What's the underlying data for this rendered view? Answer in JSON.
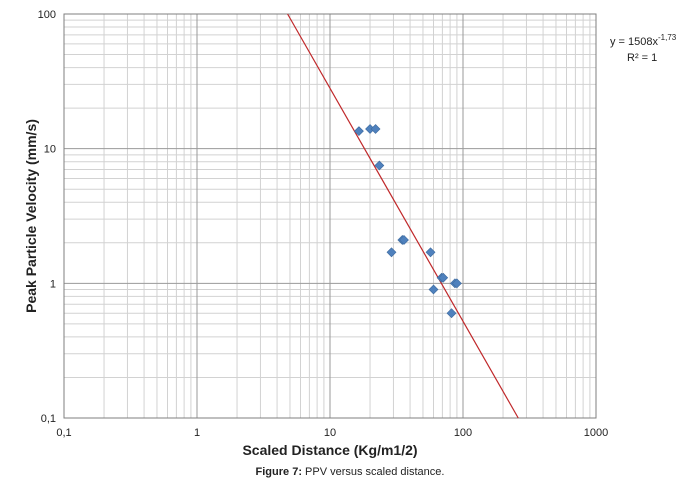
{
  "chart_data": {
    "type": "scatter",
    "xscale": "log",
    "yscale": "log",
    "xlim": [
      0.1,
      1000
    ],
    "ylim": [
      0.1,
      100
    ],
    "xlabel": "Scaled Distance (Kg/m1/2)",
    "ylabel": "Peak Particle Velocity (mm/s)",
    "x_tick_labels": [
      "0,1",
      "1",
      "10",
      "100",
      "1000"
    ],
    "y_tick_labels": [
      "0,1",
      "1",
      "10",
      "100"
    ],
    "grid": true,
    "series": [
      {
        "x": [
          16.5,
          20,
          22,
          23.5,
          29,
          35,
          36,
          57,
          60,
          69,
          71,
          82,
          87,
          90
        ],
        "y": [
          13.5,
          14,
          14,
          7.5,
          1.7,
          2.1,
          2.1,
          1.7,
          0.9,
          1.1,
          1.1,
          0.6,
          1.0,
          1.0
        ],
        "color": "#4f81bd",
        "marker": "diamond"
      }
    ],
    "trendline": {
      "type": "power",
      "coefficient": 1508,
      "exponent": -1.73,
      "color": "#c0282a",
      "equation_prefix": "y = 1508x",
      "equation_exponent": "-1,73",
      "r_squared_label": "R² = 1"
    }
  },
  "caption": {
    "label": "Figure 7:",
    "text": " PPV versus scaled distance."
  }
}
